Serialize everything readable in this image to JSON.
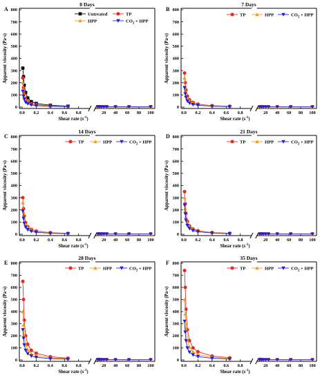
{
  "figure": {
    "axis_common": {
      "xlabel": "Shear rate (s",
      "xlabel_sup": "-1",
      "xlabel_close": ")",
      "ylabel": "Apparent viscosity (Pa·s)",
      "yticks": [
        "0",
        "100",
        "200",
        "300",
        "400",
        "500",
        "600",
        "700",
        "800"
      ],
      "xticks_left": [
        "0.0",
        "0.2",
        "0.4",
        "0.6",
        "0.8"
      ],
      "xticks_right": [
        "20",
        "40",
        "60",
        "80",
        "100"
      ]
    },
    "series_styles": {
      "Untreated": {
        "color": "#000000",
        "marker": "square"
      },
      "TP": {
        "color": "#e8261c",
        "marker": "circle"
      },
      "HPP": {
        "color": "#f39a1c",
        "marker": "triangle-up"
      },
      "CO2 + HPP": {
        "color": "#1f22d4",
        "marker": "triangle-down"
      }
    }
  },
  "chart_data": [
    {
      "panel_letter": "A",
      "title": "0 Days",
      "type": "line",
      "legend_layout": "two-row",
      "ylim": [
        0,
        800
      ],
      "x": [
        0.01,
        0.02,
        0.03,
        0.05,
        0.08,
        0.13,
        0.2,
        0.4,
        0.65,
        10,
        13,
        16,
        20,
        25,
        40,
        63,
        100
      ],
      "series": [
        {
          "name": "Untreated",
          "values": [
            320,
            250,
            180,
            120,
            75,
            45,
            30,
            15,
            8,
            3,
            3,
            2,
            2,
            2,
            2,
            2,
            2
          ]
        },
        {
          "name": "TP",
          "values": [
            240,
            160,
            110,
            70,
            45,
            28,
            20,
            10,
            6,
            3,
            3,
            2,
            2,
            2,
            2,
            2,
            2
          ]
        },
        {
          "name": "HPP",
          "values": [
            200,
            140,
            95,
            60,
            40,
            25,
            18,
            9,
            5,
            3,
            2,
            2,
            2,
            2,
            2,
            2,
            2
          ]
        },
        {
          "name": "CO2 + HPP",
          "values": [
            130,
            90,
            65,
            40,
            28,
            18,
            12,
            6,
            4,
            2,
            2,
            2,
            2,
            2,
            2,
            2,
            2
          ]
        }
      ]
    },
    {
      "panel_letter": "B",
      "title": "7 Days",
      "type": "line",
      "legend_layout": "one-row",
      "ylim": [
        0,
        800
      ],
      "x": [
        0.01,
        0.02,
        0.03,
        0.05,
        0.08,
        0.13,
        0.2,
        0.4,
        0.65,
        10,
        13,
        16,
        20,
        25,
        40,
        63,
        100
      ],
      "series": [
        {
          "name": "TP",
          "values": [
            280,
            200,
            140,
            90,
            60,
            38,
            25,
            12,
            7,
            3,
            3,
            2,
            2,
            2,
            2,
            2,
            2
          ]
        },
        {
          "name": "HPP",
          "values": [
            240,
            170,
            120,
            75,
            50,
            32,
            22,
            10,
            6,
            3,
            2,
            2,
            2,
            2,
            2,
            2,
            2
          ]
        },
        {
          "name": "CO2 + HPP",
          "values": [
            160,
            110,
            80,
            50,
            33,
            21,
            15,
            7,
            4,
            2,
            2,
            2,
            2,
            2,
            2,
            2,
            2
          ]
        }
      ]
    },
    {
      "panel_letter": "C",
      "title": "14 Days",
      "type": "line",
      "legend_layout": "one-row",
      "ylim": [
        0,
        800
      ],
      "x": [
        0.01,
        0.02,
        0.03,
        0.05,
        0.08,
        0.13,
        0.2,
        0.4,
        0.65,
        10,
        13,
        16,
        20,
        25,
        40,
        63,
        100
      ],
      "series": [
        {
          "name": "TP",
          "values": [
            300,
            210,
            150,
            95,
            62,
            40,
            27,
            13,
            7,
            3,
            3,
            2,
            2,
            2,
            2,
            2,
            2
          ]
        },
        {
          "name": "HPP",
          "values": [
            260,
            185,
            130,
            82,
            55,
            35,
            24,
            11,
            6,
            3,
            2,
            2,
            2,
            2,
            2,
            2,
            2
          ]
        },
        {
          "name": "CO2 + HPP",
          "values": [
            190,
            130,
            90,
            58,
            38,
            24,
            16,
            8,
            5,
            2,
            2,
            2,
            2,
            2,
            2,
            2,
            2
          ]
        }
      ]
    },
    {
      "panel_letter": "D",
      "title": "21 Days",
      "type": "line",
      "legend_layout": "one-row",
      "ylim": [
        0,
        800
      ],
      "x": [
        0.01,
        0.02,
        0.03,
        0.05,
        0.08,
        0.13,
        0.2,
        0.4,
        0.65,
        10,
        13,
        16,
        20,
        25,
        40,
        63,
        100
      ],
      "series": [
        {
          "name": "TP",
          "values": [
            350,
            250,
            170,
            105,
            68,
            43,
            29,
            14,
            8,
            3,
            3,
            2,
            2,
            2,
            2,
            2,
            2
          ]
        },
        {
          "name": "HPP",
          "values": [
            300,
            210,
            145,
            92,
            60,
            38,
            26,
            12,
            7,
            3,
            2,
            2,
            2,
            2,
            2,
            2,
            2
          ]
        },
        {
          "name": "CO2 + HPP",
          "values": [
            240,
            170,
            115,
            72,
            47,
            30,
            20,
            10,
            5,
            2,
            2,
            2,
            2,
            2,
            2,
            2,
            2
          ]
        }
      ]
    },
    {
      "panel_letter": "E",
      "title": "28 Days",
      "type": "line",
      "legend_layout": "one-row",
      "ylim": [
        0,
        800
      ],
      "x": [
        0.01,
        0.02,
        0.03,
        0.05,
        0.08,
        0.13,
        0.2,
        0.4,
        0.65,
        10,
        13,
        16,
        20,
        25,
        40,
        63,
        100
      ],
      "series": [
        {
          "name": "TP",
          "values": [
            650,
            500,
            330,
            200,
            130,
            80,
            55,
            27,
            15,
            5,
            4,
            3,
            3,
            3,
            2,
            2,
            2
          ]
        },
        {
          "name": "HPP",
          "values": [
            400,
            290,
            200,
            125,
            82,
            52,
            35,
            17,
            10,
            4,
            3,
            3,
            2,
            2,
            2,
            2,
            2
          ]
        },
        {
          "name": "CO2 + HPP",
          "values": [
            250,
            180,
            125,
            80,
            52,
            33,
            22,
            11,
            6,
            3,
            2,
            2,
            2,
            2,
            2,
            2,
            2
          ]
        }
      ]
    },
    {
      "panel_letter": "F",
      "title": "35 Days",
      "type": "line",
      "legend_layout": "one-row",
      "ylim": [
        0,
        800
      ],
      "x": [
        0.01,
        0.02,
        0.03,
        0.05,
        0.08,
        0.13,
        0.2,
        0.4,
        0.65,
        10,
        13,
        16,
        20,
        25,
        40,
        63,
        100
      ],
      "series": [
        {
          "name": "TP",
          "values": [
            740,
            600,
            420,
            250,
            160,
            100,
            68,
            33,
            18,
            5,
            4,
            3,
            3,
            3,
            2,
            2,
            2
          ]
        },
        {
          "name": "HPP",
          "values": [
            500,
            380,
            260,
            160,
            105,
            66,
            45,
            22,
            12,
            4,
            3,
            3,
            2,
            2,
            2,
            2,
            2
          ]
        },
        {
          "name": "CO2 + HPP",
          "values": [
            320,
            230,
            160,
            100,
            65,
            42,
            28,
            14,
            8,
            3,
            2,
            2,
            2,
            2,
            2,
            2,
            2
          ]
        }
      ]
    }
  ]
}
